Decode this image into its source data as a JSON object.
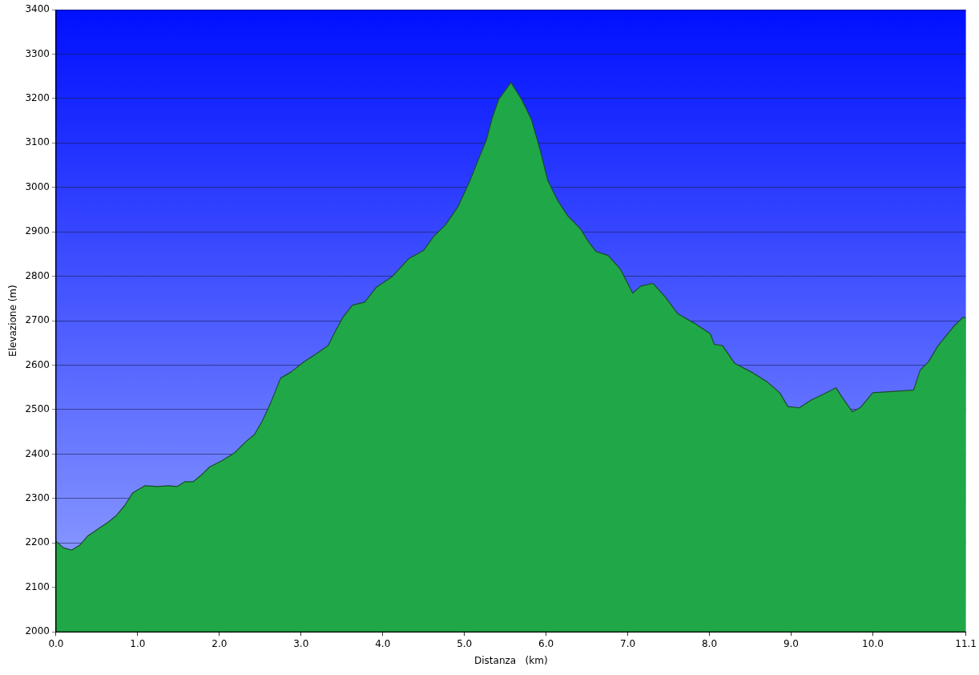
{
  "chart_data": {
    "type": "area",
    "xlabel": "Distanza   (km)",
    "ylabel": "Elevazione (m)",
    "x": [
      0,
      0.09,
      0.19,
      0.29,
      0.39,
      0.54,
      0.64,
      0.74,
      0.84,
      0.94,
      1.09,
      1.24,
      1.38,
      1.48,
      1.58,
      1.68,
      1.78,
      1.88,
      2.03,
      2.18,
      2.33,
      2.43,
      2.53,
      2.63,
      2.75,
      2.88,
      3.03,
      3.18,
      3.33,
      3.43,
      3.51,
      3.63,
      3.78,
      3.92,
      4.12,
      4.32,
      4.5,
      4.62,
      4.77,
      4.92,
      5.07,
      5.17,
      5.27,
      5.34,
      5.42,
      5.57,
      5.7,
      5.82,
      5.92,
      6.02,
      6.14,
      6.27,
      6.42,
      6.51,
      6.61,
      6.76,
      6.91,
      7.06,
      7.16,
      7.31,
      7.46,
      7.61,
      7.81,
      8.01,
      8.06,
      8.16,
      8.31,
      8.51,
      8.71,
      8.86,
      8.96,
      9.1,
      9.25,
      9.4,
      9.55,
      9.62,
      9.75,
      9.85,
      10.0,
      10.5,
      10.58,
      10.68,
      10.8,
      11.0,
      11.1,
      11.14
    ],
    "series": [
      {
        "color": "#20a848",
        "values": [
          2204,
          2189,
          2184,
          2195,
          2216,
          2235,
          2247,
          2262,
          2284,
          2313,
          2329,
          2327,
          2329,
          2327,
          2338,
          2338,
          2353,
          2371,
          2385,
          2402,
          2429,
          2444,
          2476,
          2516,
          2571,
          2585,
          2607,
          2625,
          2644,
          2680,
          2707,
          2735,
          2742,
          2775,
          2800,
          2840,
          2858,
          2889,
          2916,
          2956,
          3016,
          3062,
          3107,
          3156,
          3198,
          3236,
          3198,
          3153,
          3089,
          3016,
          2971,
          2935,
          2907,
          2880,
          2856,
          2847,
          2816,
          2762,
          2778,
          2784,
          2753,
          2716,
          2695,
          2671,
          2647,
          2644,
          2604,
          2585,
          2562,
          2538,
          2507,
          2504,
          2522,
          2535,
          2549,
          2529,
          2495,
          2505,
          2538,
          2544,
          2589,
          2607,
          2644,
          2689,
          2707,
          2707
        ]
      }
    ],
    "xlim": [
      0,
      11.14
    ],
    "xticks": [
      {
        "value": 0,
        "label": "0.0"
      },
      {
        "value": 1,
        "label": "1.0"
      },
      {
        "value": 2,
        "label": "2.0"
      },
      {
        "value": 3,
        "label": "3.0"
      },
      {
        "value": 4,
        "label": "4.0"
      },
      {
        "value": 5,
        "label": "5.0"
      },
      {
        "value": 6,
        "label": "6.0"
      },
      {
        "value": 7,
        "label": "7.0"
      },
      {
        "value": 8,
        "label": "8.0"
      },
      {
        "value": 9,
        "label": "9.0"
      },
      {
        "value": 10,
        "label": "10.0"
      },
      {
        "value": 11.14,
        "label": "11.1"
      }
    ],
    "ylim": [
      2000,
      3400
    ],
    "yticks": [
      2000,
      2100,
      2200,
      2300,
      2400,
      2500,
      2600,
      2700,
      2800,
      2900,
      3000,
      3100,
      3200,
      3300,
      3400
    ],
    "grid": "y",
    "legend": false,
    "marker": "none"
  }
}
